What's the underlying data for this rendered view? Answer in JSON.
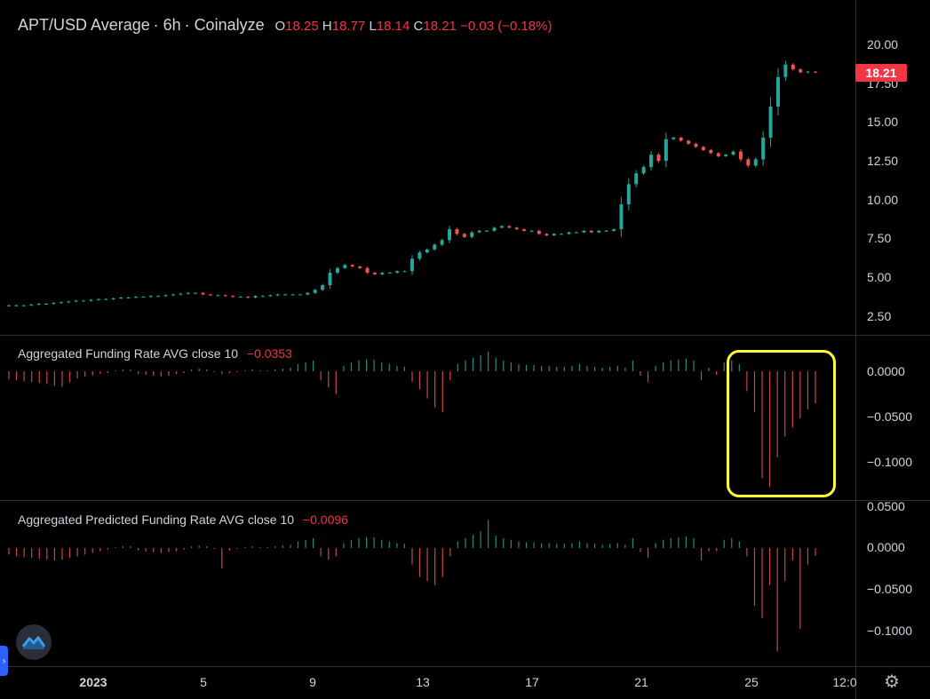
{
  "main_chart": {
    "symbol": "APT/USD Average",
    "interval": "6h",
    "source": "Coinalyze",
    "ohlc": {
      "o_label": "O",
      "o": "18.25",
      "h_label": "H",
      "h": "18.77",
      "l_label": "L",
      "l": "18.14",
      "c_label": "C",
      "c": "18.21",
      "change": "−0.03 (−0.18%)"
    },
    "last_price": "18.21",
    "price_axis": [
      "20.00",
      "17.50",
      "15.00",
      "12.50",
      "10.00",
      "7.50",
      "5.00",
      "2.50"
    ]
  },
  "funding_pane": {
    "title": "Aggregated Funding Rate AVG close 10",
    "value": "−0.0353",
    "axis": [
      "0.0000",
      "−0.0500",
      "−0.1000"
    ]
  },
  "predicted_pane": {
    "title": "Aggregated Predicted Funding Rate AVG close 10",
    "value": "−0.0096",
    "axis": [
      "0.0500",
      "0.0000",
      "−0.0500",
      "−0.1000"
    ]
  },
  "time_axis": [
    "2023",
    "5",
    "9",
    "13",
    "17",
    "21",
    "25",
    "12:0"
  ],
  "colors": {
    "up": "#26a69a",
    "down": "#ef5350",
    "highlight": "#ffff33",
    "price_tag": "#f23645"
  },
  "icons": {
    "logo": "coinalyze-logo-icon",
    "settings": "gear-icon",
    "collapse": "chevron-right-icon"
  },
  "chart_data": [
    {
      "type": "candlestick",
      "title": "APT/USD Average · 6h · Coinalyze",
      "x_range": [
        "2022-12-29",
        "2023-01-27"
      ],
      "ylim": [
        2.5,
        20.5
      ],
      "candles_close": [
        3.2,
        3.2,
        3.2,
        3.25,
        3.3,
        3.3,
        3.35,
        3.4,
        3.45,
        3.5,
        3.5,
        3.55,
        3.6,
        3.6,
        3.65,
        3.7,
        3.7,
        3.75,
        3.75,
        3.8,
        3.8,
        3.85,
        3.9,
        3.95,
        4.0,
        4.0,
        3.9,
        3.85,
        3.85,
        3.8,
        3.75,
        3.75,
        3.7,
        3.8,
        3.8,
        3.85,
        3.9,
        3.9,
        3.9,
        3.9,
        4.0,
        4.2,
        4.5,
        5.3,
        5.6,
        5.8,
        5.7,
        5.6,
        5.3,
        5.2,
        5.3,
        5.3,
        5.4,
        5.4,
        6.2,
        6.6,
        6.8,
        7.1,
        7.4,
        8.1,
        7.8,
        7.6,
        7.9,
        8.0,
        8.0,
        8.2,
        8.3,
        8.2,
        8.1,
        8.0,
        8.0,
        7.8,
        7.7,
        7.8,
        7.8,
        7.9,
        7.9,
        8.0,
        7.9,
        8.0,
        8.0,
        8.1,
        9.7,
        11.0,
        11.7,
        12.1,
        12.9,
        12.5,
        13.9,
        14.0,
        13.8,
        13.6,
        13.4,
        13.2,
        13.0,
        12.8,
        12.9,
        13.1,
        12.6,
        12.2,
        12.6,
        14.0,
        16.0,
        17.9,
        18.7,
        18.4,
        18.2,
        18.25,
        18.21
      ],
      "series": [
        {
          "name": "APT/USD Average"
        }
      ]
    },
    {
      "type": "bar",
      "title": "Aggregated Funding Rate AVG close 10",
      "ylim": [
        -0.13,
        0.02
      ],
      "values": [
        -0.009,
        -0.01,
        -0.011,
        -0.012,
        -0.013,
        -0.014,
        -0.016,
        -0.017,
        -0.012,
        -0.008,
        -0.006,
        -0.005,
        -0.003,
        -0.002,
        0.001,
        0.002,
        0.002,
        -0.003,
        -0.004,
        -0.005,
        -0.006,
        -0.005,
        -0.003,
        -0.002,
        0.002,
        0.003,
        0.002,
        -0.001,
        -0.003,
        -0.002,
        -0.001,
        0.001,
        0.002,
        0.001,
        0.001,
        0.002,
        0.003,
        0.004,
        0.008,
        0.01,
        0.012,
        -0.01,
        -0.018,
        -0.025,
        0.006,
        0.01,
        0.012,
        0.013,
        0.013,
        0.01,
        0.008,
        0.006,
        0.005,
        -0.012,
        -0.02,
        -0.03,
        -0.04,
        -0.045,
        -0.01,
        0.008,
        0.012,
        0.015,
        0.018,
        0.022,
        0.015,
        0.012,
        0.01,
        0.008,
        0.007,
        0.007,
        0.006,
        0.006,
        0.005,
        0.005,
        0.006,
        0.008,
        0.006,
        0.005,
        0.004,
        0.005,
        0.006,
        0.004,
        0.012,
        -0.005,
        -0.012,
        0.006,
        0.01,
        0.012,
        0.013,
        0.014,
        0.012,
        -0.01,
        0.004,
        -0.004,
        0.01,
        0.012,
        0.008,
        -0.022,
        -0.045,
        -0.118,
        -0.128,
        -0.095,
        -0.072,
        -0.062,
        -0.052,
        -0.042,
        -0.0353
      ]
    },
    {
      "type": "bar",
      "title": "Aggregated Predicted Funding Rate AVG close 10",
      "ylim": [
        -0.13,
        0.05
      ],
      "values": [
        -0.008,
        -0.01,
        -0.011,
        -0.012,
        -0.013,
        -0.014,
        -0.015,
        -0.014,
        -0.012,
        -0.01,
        -0.008,
        -0.006,
        -0.004,
        -0.002,
        0.001,
        0.002,
        0.002,
        -0.003,
        -0.004,
        -0.005,
        -0.006,
        -0.005,
        -0.004,
        -0.002,
        0.002,
        0.003,
        0.002,
        -0.001,
        -0.025,
        -0.003,
        -0.001,
        0.001,
        0.002,
        0.001,
        0.001,
        0.002,
        0.003,
        0.004,
        0.008,
        0.01,
        0.012,
        -0.01,
        -0.014,
        -0.01,
        0.006,
        0.01,
        0.012,
        0.013,
        0.013,
        0.01,
        0.008,
        0.006,
        0.005,
        -0.02,
        -0.035,
        -0.04,
        -0.045,
        -0.035,
        -0.01,
        0.008,
        0.012,
        0.016,
        0.02,
        0.034,
        0.015,
        0.012,
        0.01,
        0.008,
        0.007,
        0.007,
        0.006,
        0.006,
        0.005,
        0.005,
        0.006,
        0.008,
        0.006,
        0.005,
        0.004,
        0.005,
        0.006,
        0.004,
        0.012,
        -0.005,
        -0.012,
        0.006,
        0.01,
        0.012,
        0.013,
        0.014,
        0.012,
        -0.015,
        -0.004,
        -0.004,
        0.01,
        0.012,
        0.008,
        -0.01,
        -0.07,
        -0.085,
        -0.045,
        -0.125,
        -0.04,
        -0.015,
        -0.098,
        -0.02,
        -0.0096
      ]
    }
  ]
}
